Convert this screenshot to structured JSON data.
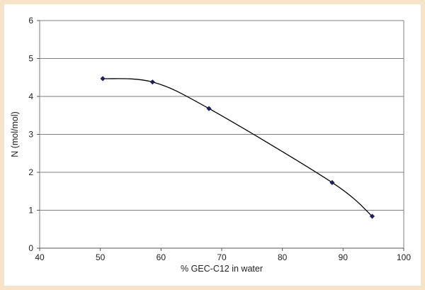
{
  "chart_data": {
    "type": "line",
    "title": "",
    "xlabel": "% GEC-C12 in water",
    "ylabel": "N (mol/mol)",
    "xlim": [
      40,
      100
    ],
    "ylim": [
      0,
      6
    ],
    "x_ticks": [
      "40",
      "50",
      "60",
      "70",
      "80",
      "90",
      "100"
    ],
    "y_ticks": [
      "0",
      "1",
      "2",
      "3",
      "4",
      "5",
      "6"
    ],
    "grid": "horizontal",
    "legend": "none",
    "smoothed": true,
    "series": [
      {
        "x": [
          50.4,
          58.6,
          67.9,
          88.2,
          94.8
        ],
        "y": [
          4.47,
          4.38,
          3.68,
          1.73,
          0.84
        ]
      }
    ],
    "colors": {
      "frame": "#f6e3c8",
      "marker": "#1f1f5c",
      "line": "#000000",
      "grid": "#7f7f7f"
    }
  }
}
